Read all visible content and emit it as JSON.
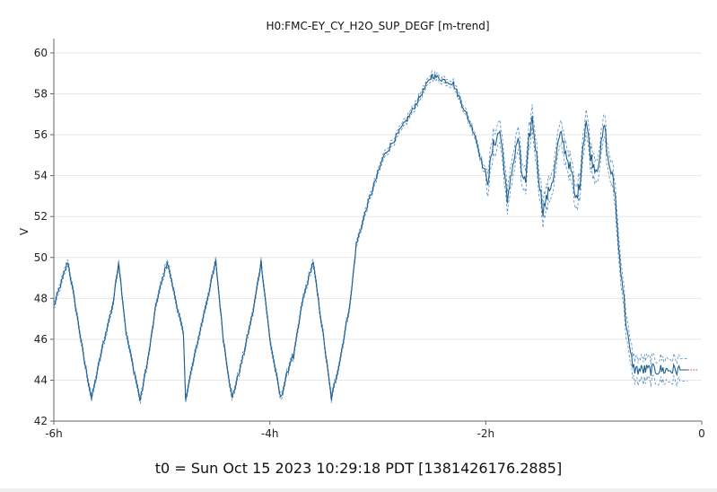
{
  "chart_data": {
    "type": "line",
    "title": "H0:FMC-EY_CY_H2O_SUP_DEGF [m-trend]",
    "ylabel": "V",
    "xlabel": "",
    "x_unit": "hours relative to t0",
    "xlim": [
      -6,
      0
    ],
    "ylim": [
      42,
      60.7
    ],
    "y_ticks": [
      42,
      44,
      46,
      48,
      50,
      52,
      54,
      56,
      58,
      60
    ],
    "x_ticks": [
      {
        "value": -6,
        "label": "-6h"
      },
      {
        "value": -4,
        "label": "-4h"
      },
      {
        "value": -2,
        "label": "-2h"
      },
      {
        "value": 0,
        "label": "0"
      }
    ],
    "grid": true,
    "legend": "none",
    "colors": {
      "mean": "#1f5f8f",
      "envelope": "#5a8fc0",
      "tail": "#cc3333"
    },
    "series": [
      {
        "x": [
          -6.0,
          -5.87,
          -5.78,
          -5.72,
          -5.65,
          -5.55,
          -5.45,
          -5.4,
          -5.33,
          -5.2,
          -5.12,
          -5.05,
          -4.95,
          -4.8,
          -4.78,
          -4.7,
          -4.6,
          -4.5,
          -4.43,
          -4.35,
          -4.25,
          -4.15,
          -4.08,
          -4.0,
          -3.9,
          -3.8,
          -3.78,
          -3.7,
          -3.6,
          -3.5,
          -3.43,
          -3.35,
          -3.25,
          -3.2,
          -3.1,
          -2.95,
          -2.7,
          -2.5,
          -2.3,
          -2.1,
          -2.03,
          -1.98,
          -1.93,
          -1.87,
          -1.83,
          -1.8,
          -1.77,
          -1.73,
          -1.7,
          -1.67,
          -1.63,
          -1.6,
          -1.57,
          -1.53,
          -1.5,
          -1.47,
          -1.43,
          -1.4,
          -1.37,
          -1.33,
          -1.3,
          -1.27,
          -1.23,
          -1.2,
          -1.17,
          -1.13,
          -1.1,
          -1.07,
          -1.03,
          -1.0,
          -0.97,
          -0.93,
          -0.9,
          -0.87,
          -0.83,
          -0.8,
          -0.77,
          -0.73,
          -0.7,
          -0.67,
          -0.63,
          -0.6,
          -0.57,
          -0.53,
          -0.5,
          -0.47,
          -0.43,
          -0.4,
          -0.37,
          -0.33,
          -0.3,
          -0.27,
          -0.23,
          -0.2,
          -0.17,
          -0.13,
          -0.1,
          -0.07,
          -0.03
        ],
        "y": [
          47.6,
          49.8,
          47.0,
          45.0,
          43.1,
          45.6,
          47.8,
          49.8,
          46.3,
          43.0,
          45.3,
          47.8,
          49.8,
          46.2,
          43.1,
          45.1,
          47.5,
          49.8,
          46.0,
          43.1,
          45.1,
          47.5,
          49.8,
          46.0,
          43.1,
          45.1,
          45.1,
          47.8,
          49.8,
          46.0,
          43.1,
          45.0,
          48.0,
          50.6,
          52.5,
          54.9,
          57.0,
          58.9,
          58.5,
          56.0,
          54.5,
          53.8,
          55.5,
          56.2,
          54.5,
          52.5,
          54.0,
          55.0,
          55.9,
          54.2,
          53.6,
          55.8,
          56.8,
          55.0,
          53.5,
          52.3,
          53.0,
          53.5,
          54.0,
          55.6,
          56.0,
          55.3,
          54.6,
          54.0,
          52.8,
          53.5,
          55.5,
          56.7,
          55.0,
          54.5,
          54.3,
          55.5,
          56.5,
          54.8,
          54.0,
          53.0,
          50.5,
          48.5,
          46.8,
          45.5,
          44.6,
          44.5,
          44.5,
          44.5,
          44.5,
          44.5,
          44.5,
          44.5,
          44.5,
          44.5,
          44.5,
          44.5,
          44.5,
          44.5,
          44.5,
          44.5,
          44.5,
          44.5,
          44.5
        ]
      }
    ],
    "t0_label": "t0 = Sun Oct 15 2023 10:29:18 PDT [1381426176.2885]"
  }
}
